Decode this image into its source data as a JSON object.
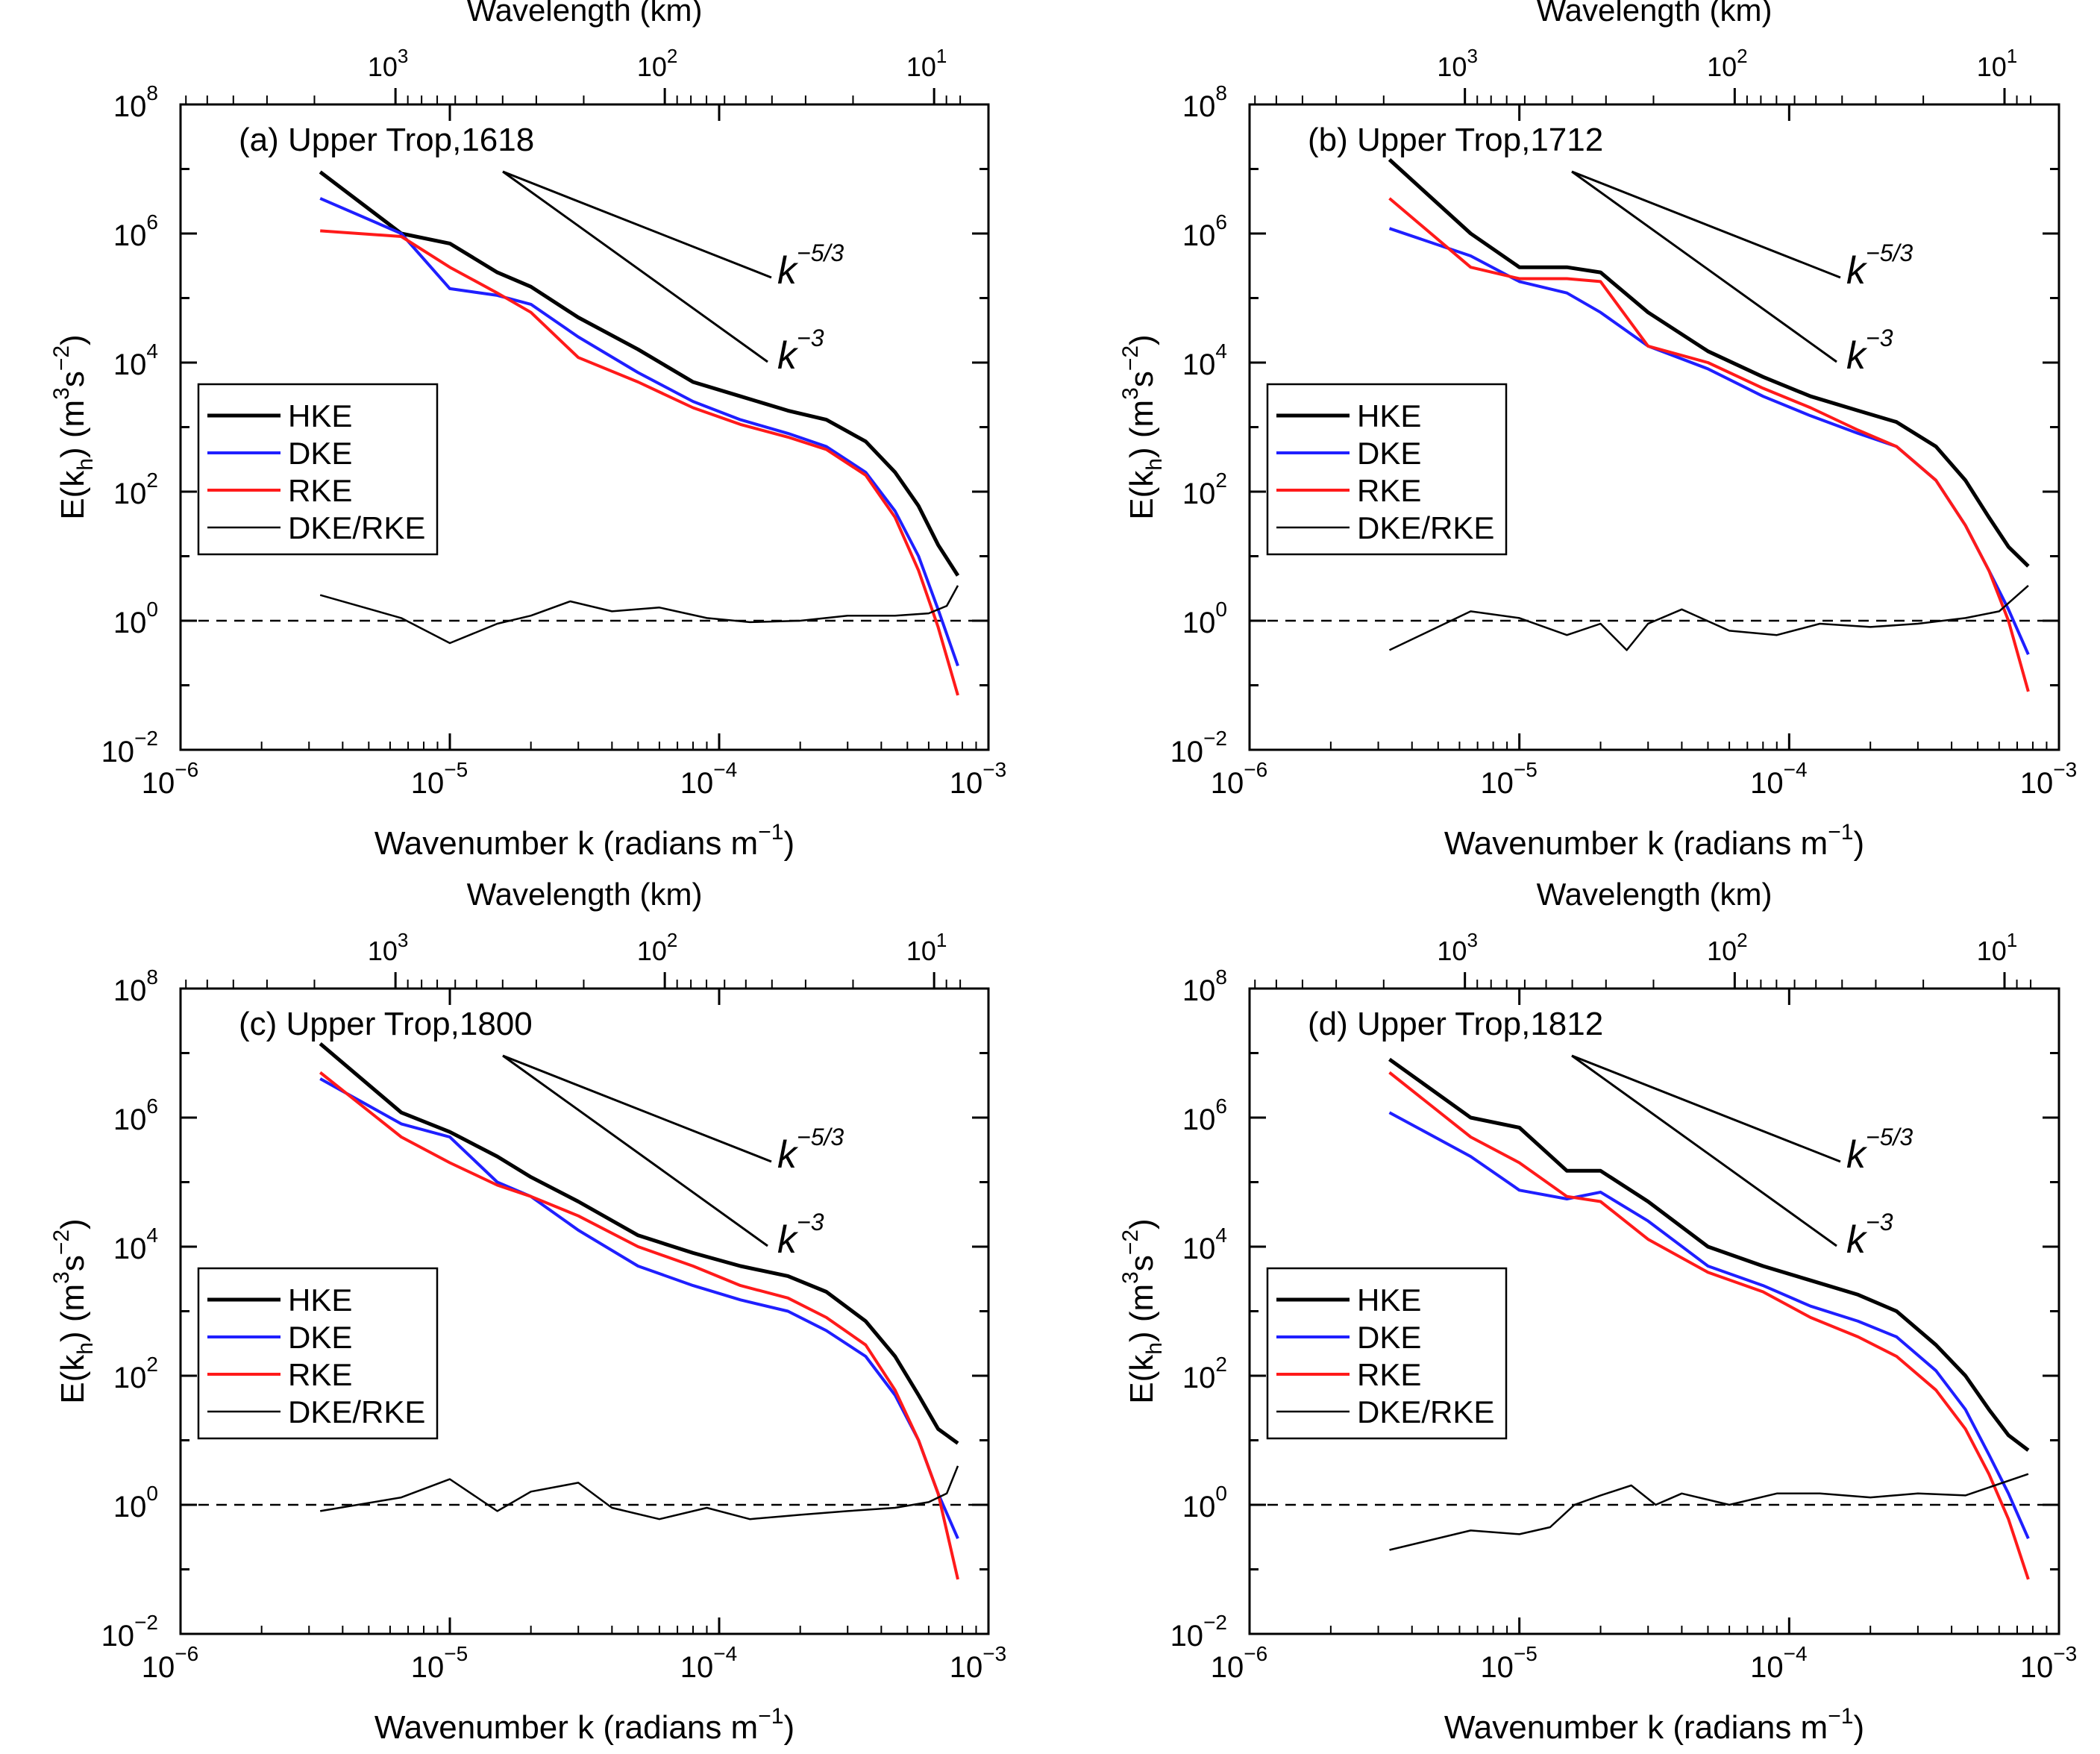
{
  "figure": {
    "x_axis_label": "Wavenumber k (radians m",
    "x_axis_label_sup": "−1",
    "x_axis_label_end": ")",
    "top_axis_label": "Wavelength (km)",
    "y_axis_label_a": "E(k",
    "y_axis_label_sub": "h",
    "y_axis_label_b": ") (m",
    "y_axis_label_sup1": "3",
    "y_axis_label_c": "s",
    "y_axis_label_sup2": "−2",
    "y_axis_label_d": ")",
    "slope_label_1": "k",
    "slope_label_1_sup": "−5/3",
    "slope_label_2": "k",
    "slope_label_2_sup": "−3",
    "tick_base": "10",
    "bottom_tick_exps": [
      "−6",
      "−5",
      "−4",
      "−3"
    ],
    "top_tick_exps": [
      "3",
      "2",
      "1"
    ],
    "left_tick_exps": [
      "8",
      "6",
      "4",
      "2",
      "0",
      "−2"
    ],
    "legend": [
      "HKE",
      "DKE",
      "RKE",
      "DKE/RKE"
    ]
  },
  "colors": {
    "HKE": "#000000",
    "DKE": "#1f1fff",
    "RKE": "#ff1a1a",
    "ratio": "#000000"
  },
  "chart_data": [
    {
      "type": "line",
      "title": "(a) Upper Trop,1618",
      "x_scale": "log",
      "y_scale": "log",
      "xlim": [
        1e-06,
        0.001
      ],
      "ylim": [
        0.01,
        100000000.0
      ],
      "reference_line_y": 1,
      "series": [
        {
          "name": "HKE",
          "x": [
            3.3e-06,
            6.6e-06,
            1e-05,
            1.5e-05,
            2e-05,
            3e-05,
            5e-05,
            8e-05,
            0.00012,
            0.00018,
            0.00025,
            0.00035,
            0.00045,
            0.00055,
            0.00065,
            0.00077
          ],
          "y": [
            9000000.0,
            1000000.0,
            700000.0,
            250000.0,
            150000.0,
            50000.0,
            16000.0,
            5000.0,
            3000.0,
            1800.0,
            1300.0,
            600,
            200,
            60,
            15,
            5
          ]
        },
        {
          "name": "DKE",
          "x": [
            3.3e-06,
            6.6e-06,
            1e-05,
            1.5e-05,
            2e-05,
            3e-05,
            5e-05,
            8e-05,
            0.00012,
            0.00018,
            0.00025,
            0.00035,
            0.00045,
            0.00055,
            0.00065,
            0.00077
          ],
          "y": [
            3500000.0,
            1000000.0,
            140000.0,
            110000.0,
            80000.0,
            25000.0,
            7000.0,
            2500.0,
            1300.0,
            800,
            500,
            200,
            50,
            10,
            1.5,
            0.2
          ]
        },
        {
          "name": "RKE",
          "x": [
            3.3e-06,
            6.6e-06,
            1e-05,
            1.5e-05,
            2e-05,
            3e-05,
            5e-05,
            8e-05,
            0.00012,
            0.00018,
            0.00025,
            0.00035,
            0.00045,
            0.00055,
            0.00065,
            0.00077
          ],
          "y": [
            1100000.0,
            900000.0,
            300000.0,
            120000.0,
            60000.0,
            12000.0,
            5000.0,
            2000.0,
            1100.0,
            700,
            450,
            180,
            40,
            6,
            0.8,
            0.07
          ]
        },
        {
          "name": "DKE/RKE",
          "x": [
            3.3e-06,
            6.6e-06,
            1e-05,
            1.5e-05,
            2e-05,
            2.8e-05,
            4e-05,
            6e-05,
            9e-05,
            0.00013,
            0.0002,
            0.0003,
            0.00045,
            0.0006,
            0.0007,
            0.00077
          ],
          "y": [
            2.5,
            1.1,
            0.45,
            0.9,
            1.2,
            2,
            1.4,
            1.6,
            1.1,
            0.95,
            1.0,
            1.2,
            1.2,
            1.3,
            1.7,
            3.5
          ]
        }
      ]
    },
    {
      "type": "line",
      "title": "(b) Upper Trop,1712",
      "x_scale": "log",
      "y_scale": "log",
      "xlim": [
        1e-06,
        0.001
      ],
      "ylim": [
        0.01,
        100000000.0
      ],
      "reference_line_y": 1,
      "series": [
        {
          "name": "HKE",
          "x": [
            3.3e-06,
            6.6e-06,
            1e-05,
            1.5e-05,
            2e-05,
            3e-05,
            5e-05,
            8e-05,
            0.00012,
            0.00018,
            0.00025,
            0.00035,
            0.00045,
            0.00055,
            0.00065,
            0.00077
          ],
          "y": [
            14000000.0,
            1000000.0,
            300000.0,
            300000.0,
            250000.0,
            60000.0,
            15000.0,
            6000.0,
            3000.0,
            1800.0,
            1200.0,
            500,
            150,
            40,
            14,
            7
          ]
        },
        {
          "name": "DKE",
          "x": [
            3.3e-06,
            6.6e-06,
            1e-05,
            1.5e-05,
            2e-05,
            3e-05,
            5e-05,
            8e-05,
            0.00012,
            0.00018,
            0.00025,
            0.00035,
            0.00045,
            0.00055,
            0.00065,
            0.00077
          ],
          "y": [
            1200000.0,
            450000.0,
            180000.0,
            120000.0,
            60000.0,
            18000.0,
            8000.0,
            3000.0,
            1500.0,
            800,
            500,
            150,
            30,
            6,
            1.5,
            0.3
          ]
        },
        {
          "name": "RKE",
          "x": [
            3.3e-06,
            6.6e-06,
            1e-05,
            1.5e-05,
            2e-05,
            3e-05,
            5e-05,
            8e-05,
            0.00012,
            0.00018,
            0.00025,
            0.00035,
            0.00045,
            0.00055,
            0.00065,
            0.00077
          ],
          "y": [
            3500000.0,
            300000.0,
            200000.0,
            200000.0,
            180000.0,
            18000.0,
            10000.0,
            4000.0,
            2000.0,
            900,
            500,
            150,
            30,
            6,
            1,
            0.08
          ]
        },
        {
          "name": "DKE/RKE",
          "x": [
            3.3e-06,
            6.6e-06,
            1e-05,
            1.5e-05,
            2e-05,
            2.5e-05,
            3e-05,
            4e-05,
            6e-05,
            9e-05,
            0.00013,
            0.0002,
            0.0003,
            0.00045,
            0.0006,
            0.00077
          ],
          "y": [
            0.35,
            1.4,
            1.1,
            0.6,
            0.9,
            0.35,
            0.9,
            1.5,
            0.7,
            0.6,
            0.9,
            0.8,
            0.9,
            1.1,
            1.4,
            3.5
          ]
        }
      ]
    },
    {
      "type": "line",
      "title": "(c) Upper Trop,1800",
      "x_scale": "log",
      "y_scale": "log",
      "xlim": [
        1e-06,
        0.001
      ],
      "ylim": [
        0.01,
        100000000.0
      ],
      "reference_line_y": 1,
      "series": [
        {
          "name": "HKE",
          "x": [
            3.3e-06,
            6.6e-06,
            1e-05,
            1.5e-05,
            2e-05,
            3e-05,
            5e-05,
            8e-05,
            0.00012,
            0.00018,
            0.00025,
            0.00035,
            0.00045,
            0.00055,
            0.00065,
            0.00077
          ],
          "y": [
            14000000.0,
            1200000.0,
            600000.0,
            250000.0,
            120000.0,
            50000.0,
            15000.0,
            8000.0,
            5000.0,
            3500.0,
            2000.0,
            700,
            200,
            50,
            15,
            9
          ]
        },
        {
          "name": "DKE",
          "x": [
            3.3e-06,
            6.6e-06,
            1e-05,
            1.5e-05,
            2e-05,
            3e-05,
            5e-05,
            8e-05,
            0.00012,
            0.00018,
            0.00025,
            0.00035,
            0.00045,
            0.00055,
            0.00065,
            0.00077
          ],
          "y": [
            4000000.0,
            800000.0,
            500000.0,
            100000.0,
            60000.0,
            18000.0,
            5000.0,
            2500.0,
            1500.0,
            1000.0,
            500,
            200,
            50,
            10,
            1.5,
            0.3
          ]
        },
        {
          "name": "RKE",
          "x": [
            3.3e-06,
            6.6e-06,
            1e-05,
            1.5e-05,
            2e-05,
            3e-05,
            5e-05,
            8e-05,
            0.00012,
            0.00018,
            0.00025,
            0.00035,
            0.00045,
            0.00055,
            0.00065,
            0.00077
          ],
          "y": [
            5000000.0,
            500000.0,
            200000.0,
            90000.0,
            60000.0,
            30000.0,
            10000.0,
            5000.0,
            2500.0,
            1600.0,
            800,
            300,
            60,
            10,
            1.5,
            0.07
          ]
        },
        {
          "name": "DKE/RKE",
          "x": [
            3.3e-06,
            6.6e-06,
            1e-05,
            1.5e-05,
            2e-05,
            3e-05,
            4e-05,
            6e-05,
            9e-05,
            0.00013,
            0.0002,
            0.0003,
            0.00045,
            0.0006,
            0.0007,
            0.00077
          ],
          "y": [
            0.8,
            1.3,
            2.5,
            0.8,
            1.6,
            2.2,
            0.9,
            0.6,
            0.9,
            0.6,
            0.7,
            0.8,
            0.9,
            1.1,
            1.5,
            4
          ]
        }
      ]
    },
    {
      "type": "line",
      "title": "(d) Upper Trop,1812",
      "x_scale": "log",
      "y_scale": "log",
      "xlim": [
        1e-06,
        0.001
      ],
      "ylim": [
        0.01,
        100000000.0
      ],
      "reference_line_y": 1,
      "series": [
        {
          "name": "HKE",
          "x": [
            3.3e-06,
            6.6e-06,
            1e-05,
            1.5e-05,
            2e-05,
            3e-05,
            5e-05,
            8e-05,
            0.00012,
            0.00018,
            0.00025,
            0.00035,
            0.00045,
            0.00055,
            0.00065,
            0.00077
          ],
          "y": [
            8000000.0,
            1000000.0,
            700000.0,
            150000.0,
            150000.0,
            50000.0,
            10000.0,
            5000.0,
            3000.0,
            1800.0,
            1000.0,
            300,
            100,
            30,
            12,
            7
          ]
        },
        {
          "name": "DKE",
          "x": [
            3.3e-06,
            6.6e-06,
            1e-05,
            1.5e-05,
            2e-05,
            3e-05,
            5e-05,
            8e-05,
            0.00012,
            0.00018,
            0.00025,
            0.00035,
            0.00045,
            0.00055,
            0.00065,
            0.00077
          ],
          "y": [
            1200000.0,
            250000.0,
            75000.0,
            55000.0,
            70000.0,
            25000.0,
            5000.0,
            2500.0,
            1200.0,
            700,
            400,
            120,
            30,
            6,
            1.5,
            0.3
          ]
        },
        {
          "name": "RKE",
          "x": [
            3.3e-06,
            6.6e-06,
            1e-05,
            1.5e-05,
            2e-05,
            3e-05,
            5e-05,
            8e-05,
            0.00012,
            0.00018,
            0.00025,
            0.00035,
            0.00045,
            0.00055,
            0.00065,
            0.00077
          ],
          "y": [
            5000000.0,
            500000.0,
            200000.0,
            60000.0,
            50000.0,
            13000.0,
            4000.0,
            2000.0,
            800,
            400,
            200,
            60,
            15,
            3,
            0.6,
            0.07
          ]
        },
        {
          "name": "DKE/RKE",
          "x": [
            3.3e-06,
            6.6e-06,
            1e-05,
            1.3e-05,
            1.6e-05,
            2e-05,
            2.6e-05,
            3.2e-05,
            4e-05,
            6e-05,
            9e-05,
            0.00013,
            0.0002,
            0.0003,
            0.00045,
            0.00077
          ],
          "y": [
            0.2,
            0.4,
            0.35,
            0.45,
            1.0,
            1.4,
            2,
            1.0,
            1.5,
            1.0,
            1.5,
            1.5,
            1.3,
            1.5,
            1.4,
            3
          ]
        }
      ]
    }
  ]
}
